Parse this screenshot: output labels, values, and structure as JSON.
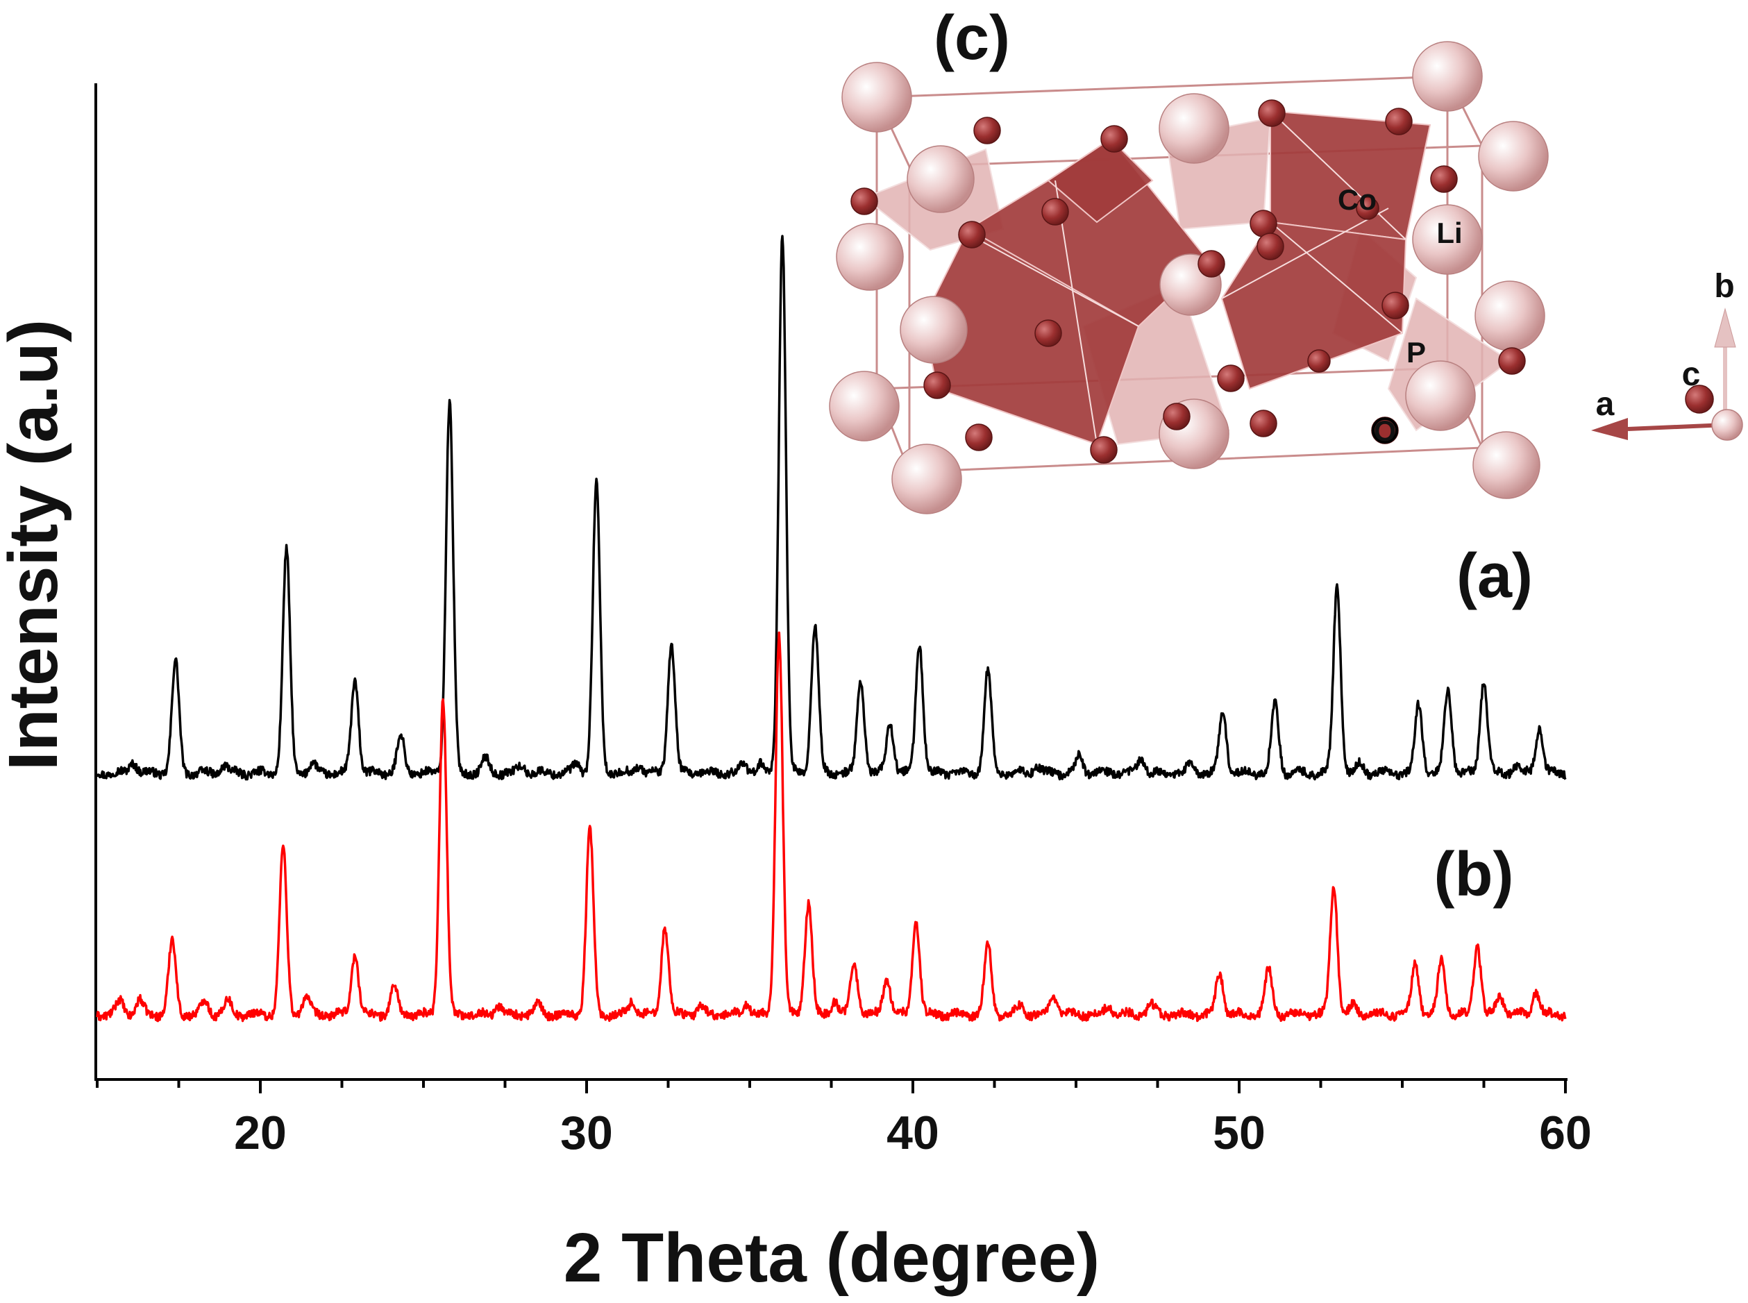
{
  "chart_data": {
    "type": "line",
    "title": "",
    "xlabel": "2 Theta (degree)",
    "ylabel": "Intensity (a.u)",
    "xlim": [
      15,
      60
    ],
    "xticks": [
      20,
      30,
      40,
      50,
      60
    ],
    "ylim": [
      0,
      105
    ],
    "series": [
      {
        "name": "(a)",
        "color": "#000000",
        "baseline": 33,
        "peaks": [
          [
            16.1,
            1.2
          ],
          [
            17.4,
            12
          ],
          [
            18.9,
            0.8
          ],
          [
            20.8,
            24
          ],
          [
            21.6,
            1
          ],
          [
            22.9,
            10
          ],
          [
            24.3,
            4
          ],
          [
            25.8,
            40
          ],
          [
            26.9,
            1.5
          ],
          [
            28.0,
            0.8
          ],
          [
            29.7,
            1
          ],
          [
            30.3,
            31
          ],
          [
            31.6,
            0.8
          ],
          [
            32.6,
            14
          ],
          [
            34.8,
            1
          ],
          [
            35.3,
            1
          ],
          [
            36.0,
            58
          ],
          [
            37.0,
            16
          ],
          [
            38.4,
            10
          ],
          [
            39.3,
            5.5
          ],
          [
            40.2,
            14
          ],
          [
            42.3,
            11
          ],
          [
            43.8,
            0.7
          ],
          [
            45.1,
            1.8
          ],
          [
            47.0,
            1.5
          ],
          [
            48.5,
            0.8
          ],
          [
            49.5,
            6.5
          ],
          [
            51.1,
            7.5
          ],
          [
            53.0,
            20
          ],
          [
            53.7,
            1
          ],
          [
            55.5,
            7.5
          ],
          [
            56.4,
            9
          ],
          [
            57.5,
            10
          ],
          [
            58.5,
            0.8
          ],
          [
            59.2,
            5
          ]
        ]
      },
      {
        "name": "(b)",
        "color": "#ff0000",
        "baseline": 7,
        "peaks": [
          [
            15.7,
            1.5
          ],
          [
            16.3,
            1.5
          ],
          [
            17.3,
            8
          ],
          [
            18.3,
            1.5
          ],
          [
            19.0,
            1.5
          ],
          [
            20.7,
            18
          ],
          [
            21.4,
            2
          ],
          [
            22.9,
            6.5
          ],
          [
            24.1,
            3
          ],
          [
            25.6,
            34
          ],
          [
            27.3,
            1
          ],
          [
            28.5,
            1
          ],
          [
            30.1,
            20
          ],
          [
            31.4,
            1.5
          ],
          [
            32.4,
            9.5
          ],
          [
            33.5,
            0.8
          ],
          [
            34.9,
            1.2
          ],
          [
            35.9,
            41
          ],
          [
            36.8,
            12
          ],
          [
            37.6,
            1.5
          ],
          [
            38.2,
            5.5
          ],
          [
            39.2,
            4
          ],
          [
            40.1,
            10
          ],
          [
            42.3,
            7.5
          ],
          [
            43.3,
            1
          ],
          [
            44.3,
            2.3
          ],
          [
            46.0,
            1
          ],
          [
            47.3,
            1
          ],
          [
            49.4,
            4.5
          ],
          [
            50.9,
            4.8
          ],
          [
            52.9,
            14
          ],
          [
            53.5,
            1
          ],
          [
            55.4,
            5.5
          ],
          [
            56.2,
            5.8
          ],
          [
            57.3,
            7.5
          ],
          [
            58.0,
            2
          ],
          [
            59.1,
            2.5
          ]
        ]
      }
    ],
    "panel_labels": [
      "(a)",
      "(b)",
      "(c)"
    ],
    "inset": {
      "label": "(c)",
      "atoms": [
        "Co",
        "Li",
        "P",
        "O"
      ],
      "axes": [
        "a",
        "b",
        "c"
      ]
    }
  }
}
